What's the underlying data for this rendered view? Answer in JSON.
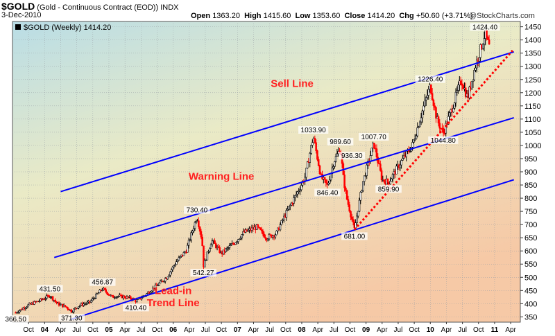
{
  "header": {
    "symbol": "$GOLD",
    "description": "(Gold - Continuous Contract (EOD))",
    "exchange": "INDX",
    "date": "3-Dec-2010",
    "open_label": "Open",
    "open": "1363.20",
    "high_label": "High",
    "high": "1415.60",
    "low_label": "Low",
    "low": "1353.60",
    "close_label": "Close",
    "close": "1414.20",
    "chg_label": "Chg",
    "chg": "+50.60 (+3.71%)",
    "brand": "@StockCharts.com"
  },
  "chart_data": {
    "type": "candlestick",
    "legend": "$GOLD (Weekly) 1414.20",
    "colors": {
      "up": "#000000",
      "down": "#ff0000",
      "trend": "#0000ff",
      "support": "#ff0000"
    },
    "ylim": [
      330,
      1470
    ],
    "ticks_y": [
      350,
      400,
      450,
      500,
      550,
      600,
      650,
      700,
      750,
      800,
      850,
      900,
      950,
      1000,
      1050,
      1100,
      1150,
      1200,
      1250,
      1300,
      1350,
      1400,
      1450
    ],
    "ticks_x": [
      {
        "t": 2003.75,
        "label": "Oct"
      },
      {
        "t": 2004.0,
        "label": "04",
        "year": true
      },
      {
        "t": 2004.25,
        "label": "Apr"
      },
      {
        "t": 2004.5,
        "label": "Jul"
      },
      {
        "t": 2004.75,
        "label": "Oct"
      },
      {
        "t": 2005.0,
        "label": "05",
        "year": true
      },
      {
        "t": 2005.25,
        "label": "Apr"
      },
      {
        "t": 2005.5,
        "label": "Jul"
      },
      {
        "t": 2005.75,
        "label": "Oct"
      },
      {
        "t": 2006.0,
        "label": "06",
        "year": true
      },
      {
        "t": 2006.25,
        "label": "Apr"
      },
      {
        "t": 2006.5,
        "label": "Jul"
      },
      {
        "t": 2006.75,
        "label": "Oct"
      },
      {
        "t": 2007.0,
        "label": "07",
        "year": true
      },
      {
        "t": 2007.25,
        "label": "Apr"
      },
      {
        "t": 2007.5,
        "label": "Jul"
      },
      {
        "t": 2007.75,
        "label": "Oct"
      },
      {
        "t": 2008.0,
        "label": "08",
        "year": true
      },
      {
        "t": 2008.25,
        "label": "Apr"
      },
      {
        "t": 2008.5,
        "label": "Jul"
      },
      {
        "t": 2008.75,
        "label": "Oct"
      },
      {
        "t": 2009.0,
        "label": "09",
        "year": true
      },
      {
        "t": 2009.25,
        "label": "Apr"
      },
      {
        "t": 2009.5,
        "label": "Jul"
      },
      {
        "t": 2009.75,
        "label": "Oct"
      },
      {
        "t": 2010.0,
        "label": "10",
        "year": true
      },
      {
        "t": 2010.25,
        "label": "Apr"
      },
      {
        "t": 2010.5,
        "label": "Jul"
      },
      {
        "t": 2010.75,
        "label": "Oct"
      },
      {
        "t": 2011.0,
        "label": "11",
        "year": true
      },
      {
        "t": 2011.25,
        "label": "Apr"
      }
    ],
    "price_path": [
      [
        2003.55,
        366.5
      ],
      [
        2003.75,
        395
      ],
      [
        2003.95,
        415
      ],
      [
        2004.08,
        431.5
      ],
      [
        2004.2,
        400
      ],
      [
        2004.33,
        388
      ],
      [
        2004.42,
        371.3
      ],
      [
        2004.55,
        395
      ],
      [
        2004.7,
        405
      ],
      [
        2004.9,
        456.87
      ],
      [
        2005.05,
        425
      ],
      [
        2005.12,
        430
      ],
      [
        2005.25,
        425
      ],
      [
        2005.35,
        420
      ],
      [
        2005.42,
        410.4
      ],
      [
        2005.55,
        430
      ],
      [
        2005.75,
        470
      ],
      [
        2005.9,
        500
      ],
      [
        2006.05,
        560
      ],
      [
        2006.2,
        600
      ],
      [
        2006.37,
        730.4
      ],
      [
        2006.45,
        640
      ],
      [
        2006.47,
        542.27
      ],
      [
        2006.6,
        640
      ],
      [
        2006.75,
        590
      ],
      [
        2006.95,
        630
      ],
      [
        2007.1,
        670
      ],
      [
        2007.3,
        690
      ],
      [
        2007.45,
        650
      ],
      [
        2007.6,
        665
      ],
      [
        2007.75,
        740
      ],
      [
        2007.95,
        830
      ],
      [
        2008.05,
        880
      ],
      [
        2008.18,
        1033.9
      ],
      [
        2008.3,
        880
      ],
      [
        2008.4,
        846.4
      ],
      [
        2008.5,
        940
      ],
      [
        2008.6,
        989.6
      ],
      [
        2008.65,
        870
      ],
      [
        2008.7,
        800
      ],
      [
        2008.82,
        681
      ],
      [
        2008.95,
        860
      ],
      [
        2009.12,
        1007.7
      ],
      [
        2009.25,
        870
      ],
      [
        2009.35,
        859.9
      ],
      [
        2009.55,
        940
      ],
      [
        2009.72,
        1000
      ],
      [
        2009.9,
        1150
      ],
      [
        2010.0,
        1226.4
      ],
      [
        2010.1,
        1100
      ],
      [
        2010.2,
        1044.8
      ],
      [
        2010.35,
        1150
      ],
      [
        2010.48,
        1250
      ],
      [
        2010.58,
        1180
      ],
      [
        2010.7,
        1300
      ],
      [
        2010.8,
        1380
      ],
      [
        2010.85,
        1424.4
      ],
      [
        2010.92,
        1370
      ],
      [
        2010.93,
        1414.2
      ]
    ],
    "price_labels": [
      {
        "text": "366.50",
        "t": 2003.55,
        "v": 366.5,
        "pos": "below"
      },
      {
        "text": "431.50",
        "t": 2004.08,
        "v": 431.5,
        "pos": "above"
      },
      {
        "text": "371.30",
        "t": 2004.42,
        "v": 371.3,
        "pos": "below"
      },
      {
        "text": "456.87",
        "t": 2004.9,
        "v": 456.87,
        "pos": "above"
      },
      {
        "text": "410.40",
        "t": 2005.42,
        "v": 410.4,
        "pos": "below"
      },
      {
        "text": "730.40",
        "t": 2006.37,
        "v": 730.4,
        "pos": "above"
      },
      {
        "text": "542.27",
        "t": 2006.47,
        "v": 542.27,
        "pos": "below"
      },
      {
        "text": "1033.90",
        "t": 2008.18,
        "v": 1033.9,
        "pos": "above"
      },
      {
        "text": "846.40",
        "t": 2008.4,
        "v": 846.4,
        "pos": "below"
      },
      {
        "text": "989.60",
        "t": 2008.6,
        "v": 989.6,
        "pos": "above"
      },
      {
        "text": "936.30",
        "t": 2008.78,
        "v": 936.3,
        "pos": "above"
      },
      {
        "text": "681.00",
        "t": 2008.82,
        "v": 681.0,
        "pos": "below"
      },
      {
        "text": "1007.70",
        "t": 2009.12,
        "v": 1007.7,
        "pos": "above"
      },
      {
        "text": "859.90",
        "t": 2009.35,
        "v": 859.9,
        "pos": "below"
      },
      {
        "text": "1226.40",
        "t": 2010.0,
        "v": 1226.4,
        "pos": "above"
      },
      {
        "text": "1044.80",
        "t": 2010.2,
        "v": 1044.8,
        "pos": "below"
      },
      {
        "text": "1424.40",
        "t": 2010.85,
        "v": 1424.4,
        "pos": "above"
      }
    ],
    "trend_lines": [
      {
        "name": "upper-channel",
        "from": [
          2004.25,
          825
        ],
        "to": [
          2011.3,
          1355
        ]
      },
      {
        "name": "middle-channel",
        "from": [
          2004.15,
          575
        ],
        "to": [
          2011.3,
          1105
        ]
      },
      {
        "name": "lower-channel",
        "from": [
          2004.4,
          340
        ],
        "to": [
          2011.3,
          870
        ]
      }
    ],
    "support_line": {
      "from": [
        2008.82,
        681
      ],
      "to": [
        2011.28,
        1360
      ]
    },
    "annotations": [
      {
        "text": "Sell Line",
        "t": 2007.85,
        "v": 1222
      },
      {
        "text": "Warning Line",
        "t": 2006.75,
        "v": 870
      },
      {
        "text": "Lead-in",
        "t": 2006.0,
        "v": 436
      },
      {
        "text": "Trend Line",
        "t": 2006.0,
        "v": 390
      }
    ]
  }
}
